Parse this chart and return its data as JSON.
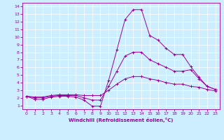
{
  "xlabel": "Windchill (Refroidissement éolien,°C)",
  "background_color": "#cceeff",
  "grid_color": "#ffffff",
  "line_color": "#990099",
  "xlim": [
    -0.5,
    23.5
  ],
  "ylim": [
    0.5,
    14.5
  ],
  "xticks": [
    0,
    1,
    2,
    3,
    4,
    5,
    6,
    7,
    8,
    9,
    10,
    11,
    12,
    13,
    14,
    15,
    16,
    17,
    18,
    19,
    20,
    21,
    22,
    23
  ],
  "yticks": [
    1,
    2,
    3,
    4,
    5,
    6,
    7,
    8,
    9,
    10,
    11,
    12,
    13,
    14
  ],
  "series": [
    [
      2.2,
      1.8,
      1.8,
      2.1,
      2.2,
      2.2,
      2.1,
      1.7,
      0.9,
      0.9,
      4.3,
      8.3,
      12.3,
      13.6,
      13.6,
      10.2,
      9.6,
      8.5,
      7.7,
      7.7,
      6.1,
      4.7,
      3.5,
      3.1
    ],
    [
      2.2,
      2.0,
      2.0,
      2.2,
      2.3,
      2.3,
      2.3,
      2.0,
      1.7,
      1.7,
      3.5,
      5.5,
      7.5,
      8.0,
      8.0,
      7.0,
      6.5,
      6.0,
      5.5,
      5.5,
      5.7,
      4.5,
      3.5,
      3.1
    ],
    [
      2.2,
      2.1,
      2.1,
      2.3,
      2.4,
      2.4,
      2.4,
      2.3,
      2.3,
      2.3,
      3.0,
      3.8,
      4.5,
      4.8,
      4.8,
      4.5,
      4.3,
      4.0,
      3.8,
      3.8,
      3.5,
      3.4,
      3.1,
      2.9
    ]
  ]
}
